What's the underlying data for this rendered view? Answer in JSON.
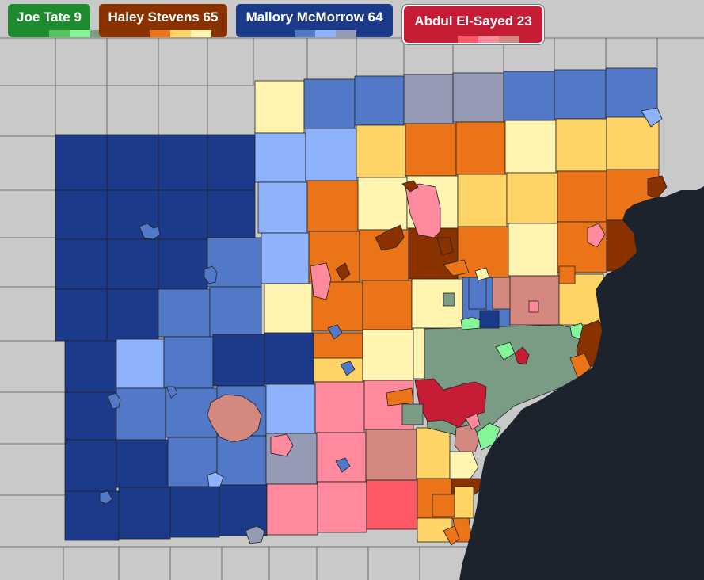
{
  "legend": {
    "candidates": [
      {
        "id": "tate",
        "label": "Joe Tate 9",
        "color": "#1e8c2e",
        "shades": [
          "#1e8c2e",
          "#55c45e",
          "#85f59a",
          "#7a9b84"
        ]
      },
      {
        "id": "stevens",
        "label": "Haley Stevens 65",
        "color": "#8a3100",
        "shades": [
          "#8a3100",
          "#ec7418",
          "#fed467",
          "#fff5b1"
        ]
      },
      {
        "id": "mcmorrow",
        "label": "Mallory McMorrow 64",
        "color": "#1c3a8a",
        "shades": [
          "#1c3a8a",
          "#5278c8",
          "#8fb2fc",
          "#959bb4"
        ]
      },
      {
        "id": "elsayed",
        "label": "Abdul El-Sayed 23",
        "color": "#c71c35",
        "selected": true,
        "shades": [
          "#c71c35",
          "#fe5866",
          "#ff8a9d",
          "#d58880"
        ]
      }
    ]
  },
  "colors": {
    "background_county": "#c9c9c9",
    "water": "#1c232c",
    "border": "#333333"
  }
}
